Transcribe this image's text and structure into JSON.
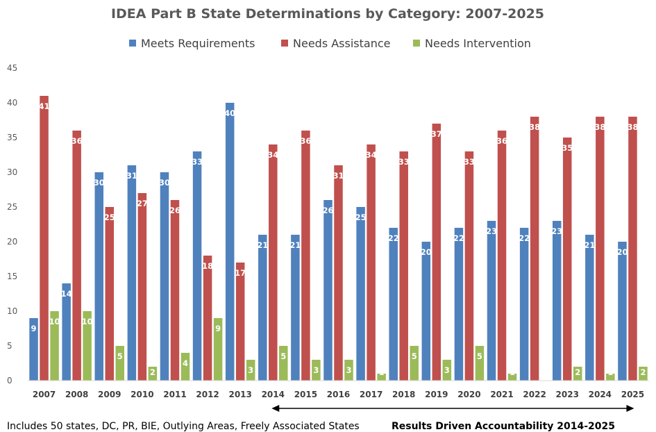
{
  "chart_data": {
    "type": "bar",
    "title": "IDEA Part B State Determinations by Category: 2007-2025",
    "categories": [
      "2007",
      "2008",
      "2009",
      "2010",
      "2011",
      "2012",
      "2013",
      "2014",
      "2015",
      "2016",
      "2017",
      "2018",
      "2019",
      "2020",
      "2021",
      "2022",
      "2023",
      "2024",
      "2025"
    ],
    "series": [
      {
        "name": "Meets Requirements",
        "color": "#4f81bd",
        "values": [
          9,
          14,
          30,
          31,
          30,
          33,
          40,
          21,
          21,
          26,
          25,
          22,
          20,
          22,
          23,
          22,
          23,
          21,
          20
        ]
      },
      {
        "name": "Needs Assistance",
        "color": "#c0504d",
        "values": [
          41,
          36,
          25,
          27,
          26,
          18,
          17,
          34,
          36,
          31,
          34,
          33,
          37,
          33,
          36,
          38,
          35,
          38,
          38
        ]
      },
      {
        "name": "Needs Intervention",
        "color": "#9bbb59",
        "values": [
          10,
          10,
          5,
          2,
          4,
          9,
          3,
          5,
          3,
          3,
          1,
          5,
          3,
          5,
          1,
          0,
          2,
          1,
          2
        ]
      }
    ],
    "yticks": [
      0,
      5,
      10,
      15,
      20,
      25,
      30,
      35,
      40,
      45
    ],
    "ylim": [
      0,
      45
    ],
    "grid": false,
    "legend_position": "top",
    "bar_label_colors": {
      "Meets Requirements": "#ffffff",
      "Needs Assistance": "#ffffff",
      "Needs Intervention": "#ffffff"
    },
    "annotation_arrow": {
      "from_category": "2014",
      "to_category": "2025"
    }
  },
  "footer": {
    "left_note": "Includes 50 states, DC, PR, BIE, Outlying Areas, Freely Associated States",
    "right_note": "Results Driven Accountability 2014-2025"
  }
}
